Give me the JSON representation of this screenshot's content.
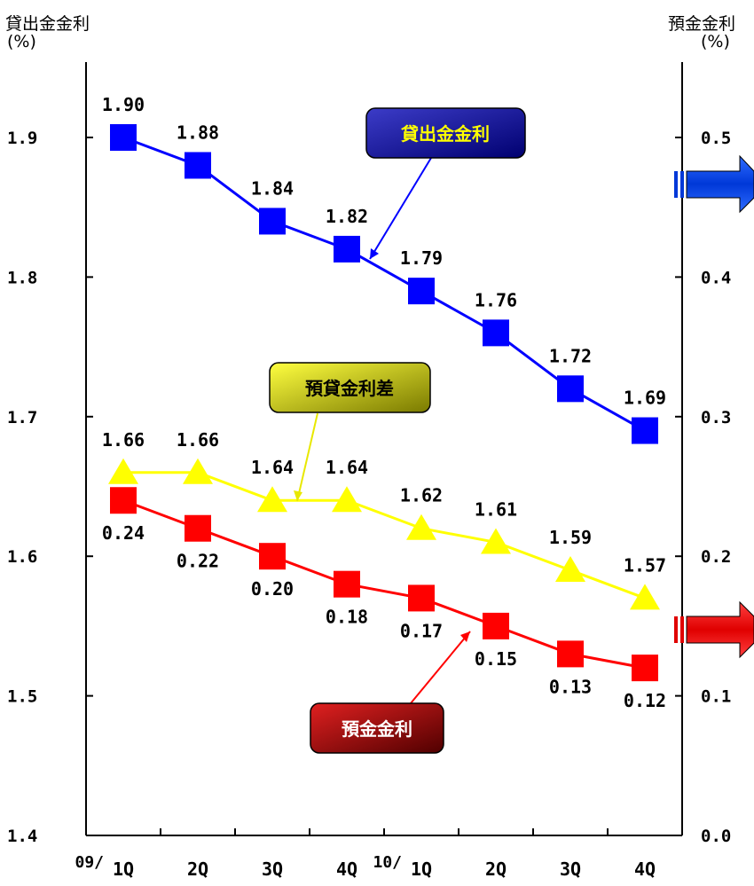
{
  "chart_data": {
    "type": "line",
    "left_axis": {
      "title": "貸出金金利",
      "unit": "(%)",
      "ylim": [
        1.4,
        1.9
      ],
      "ticks": [
        "1.4",
        "1.5",
        "1.6",
        "1.7",
        "1.8",
        "1.9"
      ]
    },
    "right_axis": {
      "title": "預金金利",
      "unit": "(%)",
      "ylim": [
        0.0,
        0.5
      ],
      "ticks": [
        "0.0",
        "0.1",
        "0.2",
        "0.3",
        "0.4",
        "0.5"
      ]
    },
    "categories": [
      "1Q",
      "2Q",
      "3Q",
      "4Q",
      "1Q",
      "2Q",
      "3Q",
      "4Q"
    ],
    "year_prefixes": [
      "09/",
      "",
      "",
      "",
      "10/",
      "",
      "",
      ""
    ],
    "series": [
      {
        "name": "貸出金金利",
        "axis": "left",
        "color": "#0000ff",
        "marker": "square",
        "values": [
          1.9,
          1.88,
          1.84,
          1.82,
          1.79,
          1.76,
          1.72,
          1.69
        ],
        "labels": [
          "1.90",
          "1.88",
          "1.84",
          "1.82",
          "1.79",
          "1.76",
          "1.72",
          "1.69"
        ]
      },
      {
        "name": "預貸金利差",
        "axis": "left",
        "color": "#ffff00",
        "marker": "triangle",
        "values": [
          1.66,
          1.66,
          1.64,
          1.64,
          1.62,
          1.61,
          1.59,
          1.57
        ],
        "labels": [
          "1.66",
          "1.66",
          "1.64",
          "1.64",
          "1.62",
          "1.61",
          "1.59",
          "1.57"
        ]
      },
      {
        "name": "預金金利",
        "axis": "right",
        "color": "#ff0000",
        "marker": "square",
        "values": [
          0.24,
          0.22,
          0.2,
          0.18,
          0.17,
          0.15,
          0.13,
          0.12
        ],
        "labels": [
          "0.24",
          "0.22",
          "0.20",
          "0.18",
          "0.17",
          "0.15",
          "0.13",
          "0.12"
        ]
      }
    ]
  }
}
